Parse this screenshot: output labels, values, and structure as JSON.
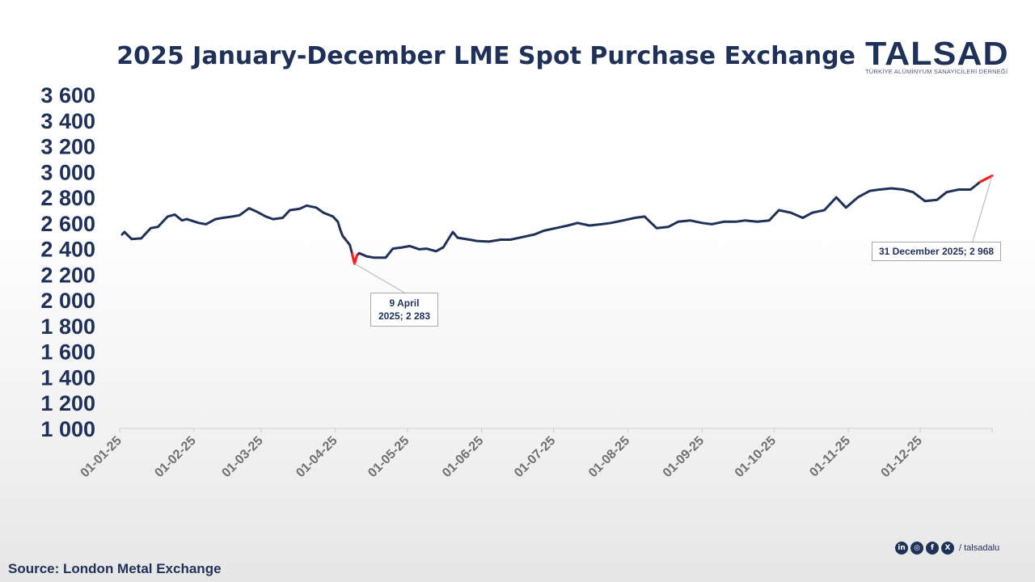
{
  "chart_data": {
    "type": "line",
    "title": "2025 January-December LME Spot Purchase Exchange",
    "xlabel": "",
    "ylabel": "",
    "ylim": [
      1000,
      3600
    ],
    "yticks": [
      1000,
      1200,
      1400,
      1600,
      1800,
      2000,
      2200,
      2400,
      2600,
      2800,
      3000,
      3200,
      3400,
      3600
    ],
    "ytick_labels": [
      "1 000",
      "1 200",
      "1 400",
      "1 600",
      "1 800",
      "2 000",
      "2 200",
      "2 400",
      "2 600",
      "2 800",
      "3 000",
      "3 200",
      "3 400",
      "3 600"
    ],
    "xlim": [
      "2025-01-01",
      "2025-12-31"
    ],
    "xticks": [
      "2025-01-01",
      "2025-02-01",
      "2025-03-01",
      "2025-04-01",
      "2025-05-01",
      "2025-06-01",
      "2025-07-01",
      "2025-08-01",
      "2025-09-01",
      "2025-10-01",
      "2025-11-01",
      "2025-12-01"
    ],
    "xtick_labels": [
      "01-01-25",
      "01-02-25",
      "01-03-25",
      "01-04-25",
      "01-05-25",
      "01-06-25",
      "01-07-25",
      "01-08-25",
      "01-09-25",
      "01-10-25",
      "01-11-25",
      "01-12-25"
    ],
    "grid": false,
    "legend": "none",
    "line_color": "#1f3158",
    "highlight_color": "#ff1e1e",
    "series": [
      {
        "x": [
          "2025-01-02",
          "2025-01-03",
          "2025-01-06",
          "2025-01-10",
          "2025-01-14",
          "2025-01-17",
          "2025-01-21",
          "2025-01-24",
          "2025-01-27",
          "2025-01-29",
          "2025-02-03",
          "2025-02-06",
          "2025-02-10",
          "2025-02-13",
          "2025-02-17",
          "2025-02-20",
          "2025-02-24",
          "2025-02-27",
          "2025-03-03",
          "2025-03-06",
          "2025-03-10",
          "2025-03-13",
          "2025-03-17",
          "2025-03-20",
          "2025-03-24",
          "2025-03-27",
          "2025-03-31",
          "2025-04-02",
          "2025-04-03",
          "2025-04-04",
          "2025-04-07",
          "2025-04-08",
          "2025-04-09",
          "2025-04-10",
          "2025-04-11",
          "2025-04-14",
          "2025-04-17",
          "2025-04-22",
          "2025-04-25",
          "2025-04-29",
          "2025-05-02",
          "2025-05-06",
          "2025-05-09",
          "2025-05-13",
          "2025-05-16",
          "2025-05-20",
          "2025-05-22",
          "2025-05-27",
          "2025-05-30",
          "2025-06-04",
          "2025-06-09",
          "2025-06-13",
          "2025-06-18",
          "2025-06-23",
          "2025-06-27",
          "2025-07-02",
          "2025-07-07",
          "2025-07-11",
          "2025-07-16",
          "2025-07-21",
          "2025-07-25",
          "2025-07-30",
          "2025-08-04",
          "2025-08-08",
          "2025-08-13",
          "2025-08-18",
          "2025-08-22",
          "2025-08-27",
          "2025-09-01",
          "2025-09-05",
          "2025-09-10",
          "2025-09-15",
          "2025-09-19",
          "2025-09-24",
          "2025-09-29",
          "2025-10-03",
          "2025-10-08",
          "2025-10-13",
          "2025-10-17",
          "2025-10-22",
          "2025-10-27",
          "2025-10-31",
          "2025-11-05",
          "2025-11-10",
          "2025-11-14",
          "2025-11-19",
          "2025-11-24",
          "2025-11-28",
          "2025-12-03",
          "2025-12-08",
          "2025-12-12",
          "2025-12-17",
          "2025-12-22",
          "2025-12-26",
          "2025-12-31"
        ],
        "values": [
          2510,
          2530,
          2475,
          2480,
          2560,
          2570,
          2650,
          2665,
          2620,
          2630,
          2600,
          2590,
          2630,
          2640,
          2650,
          2660,
          2715,
          2690,
          2650,
          2630,
          2640,
          2700,
          2710,
          2735,
          2720,
          2680,
          2650,
          2610,
          2550,
          2500,
          2430,
          2360,
          2283,
          2350,
          2365,
          2340,
          2330,
          2330,
          2400,
          2410,
          2420,
          2395,
          2400,
          2380,
          2410,
          2530,
          2485,
          2470,
          2460,
          2455,
          2470,
          2470,
          2490,
          2510,
          2540,
          2560,
          2580,
          2600,
          2580,
          2590,
          2600,
          2620,
          2640,
          2650,
          2560,
          2570,
          2610,
          2620,
          2600,
          2590,
          2610,
          2610,
          2620,
          2610,
          2620,
          2700,
          2680,
          2640,
          2680,
          2700,
          2800,
          2720,
          2800,
          2850,
          2860,
          2870,
          2860,
          2840,
          2770,
          2780,
          2840,
          2860,
          2860,
          2920,
          2968
        ]
      }
    ],
    "annotations": [
      {
        "date": "2025-04-09",
        "value": 2283,
        "lines": [
          "9 April",
          "2025; 2 283"
        ]
      },
      {
        "date": "2025-12-31",
        "value": 2968,
        "text": "31 December 2025;  2 968"
      }
    ]
  },
  "logo": {
    "word": "TALSAD",
    "subtitle": "TÜRKİYE ALÜMİNYUM SANAYİCİLERİ DERNEĞİ"
  },
  "source": "Source: London Metal Exchange",
  "social": {
    "icons": [
      "linkedin-icon",
      "instagram-icon",
      "facebook-icon",
      "x-icon"
    ],
    "handle": "/ talsadalu"
  }
}
